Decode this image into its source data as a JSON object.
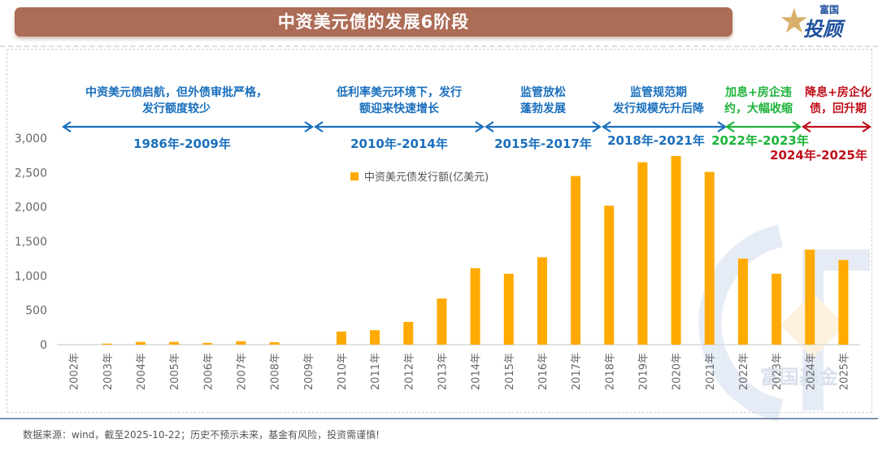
{
  "header": {
    "title": "中资美元债的发展6阶段",
    "logo_top": "富国",
    "logo_main": "投顾",
    "logo_star_glyph": "★",
    "logo_star_text": "星"
  },
  "phases": [
    {
      "line1": "中资美元债启航，但外债审批严格，",
      "line2": "发行额度较少",
      "period": "1986年-2009年",
      "color": "#1a6fbd"
    },
    {
      "line1": "低利率美元环境下，发行",
      "line2": "额迎来快速增长",
      "period": "2010年-2014年",
      "color": "#1a6fbd"
    },
    {
      "line1": "监管放松",
      "line2": "蓬勃发展",
      "period": "2015年-2017年",
      "color": "#1a6fbd"
    },
    {
      "line1": "监管规范期",
      "line2": "发行规模先升后降",
      "period": "2018年-2021年",
      "color": "#1a6fbd"
    },
    {
      "line1": "加息+房企违",
      "line2": "约，大幅收缩",
      "period": "2022年-2023年",
      "color": "#1db33a"
    },
    {
      "line1": "降息+房企化",
      "line2": "债，回升期",
      "period": "2024年-2025年",
      "color": "#c0101a"
    }
  ],
  "watermark": "富国基金",
  "footer": "数据来源：wind，截至2025-10-22；历史不预示未来，基金有风险，投资需谨慎!",
  "chart_data": {
    "type": "bar",
    "title": "中资美元债的发展6阶段",
    "categories": [
      "2002年",
      "2003年",
      "2004年",
      "2005年",
      "2006年",
      "2007年",
      "2008年",
      "2009年",
      "2010年",
      "2011年",
      "2012年",
      "2013年",
      "2014年",
      "2015年",
      "2016年",
      "2017年",
      "2018年",
      "2019年",
      "2020年",
      "2021年",
      "2022年",
      "2023年",
      "2024年",
      "2025年"
    ],
    "series": [
      {
        "name": "中资美元债发行额(亿美元)",
        "color": "#ffaa00",
        "values": [
          0,
          15,
          40,
          40,
          25,
          50,
          35,
          0,
          190,
          210,
          330,
          670,
          1110,
          1030,
          1270,
          2450,
          2020,
          2650,
          2740,
          2510,
          1250,
          1030,
          1380,
          1230
        ]
      }
    ],
    "yticks": [
      0,
      500,
      1000,
      1500,
      2000,
      2500,
      3000
    ],
    "ytick_labels": [
      "0",
      "500",
      "1,000",
      "1,500",
      "2,000",
      "2,500",
      "3,000"
    ],
    "ylim": [
      0,
      3000
    ],
    "xlabel": "",
    "ylabel": "",
    "legend_position": "top-center",
    "grid": false
  }
}
